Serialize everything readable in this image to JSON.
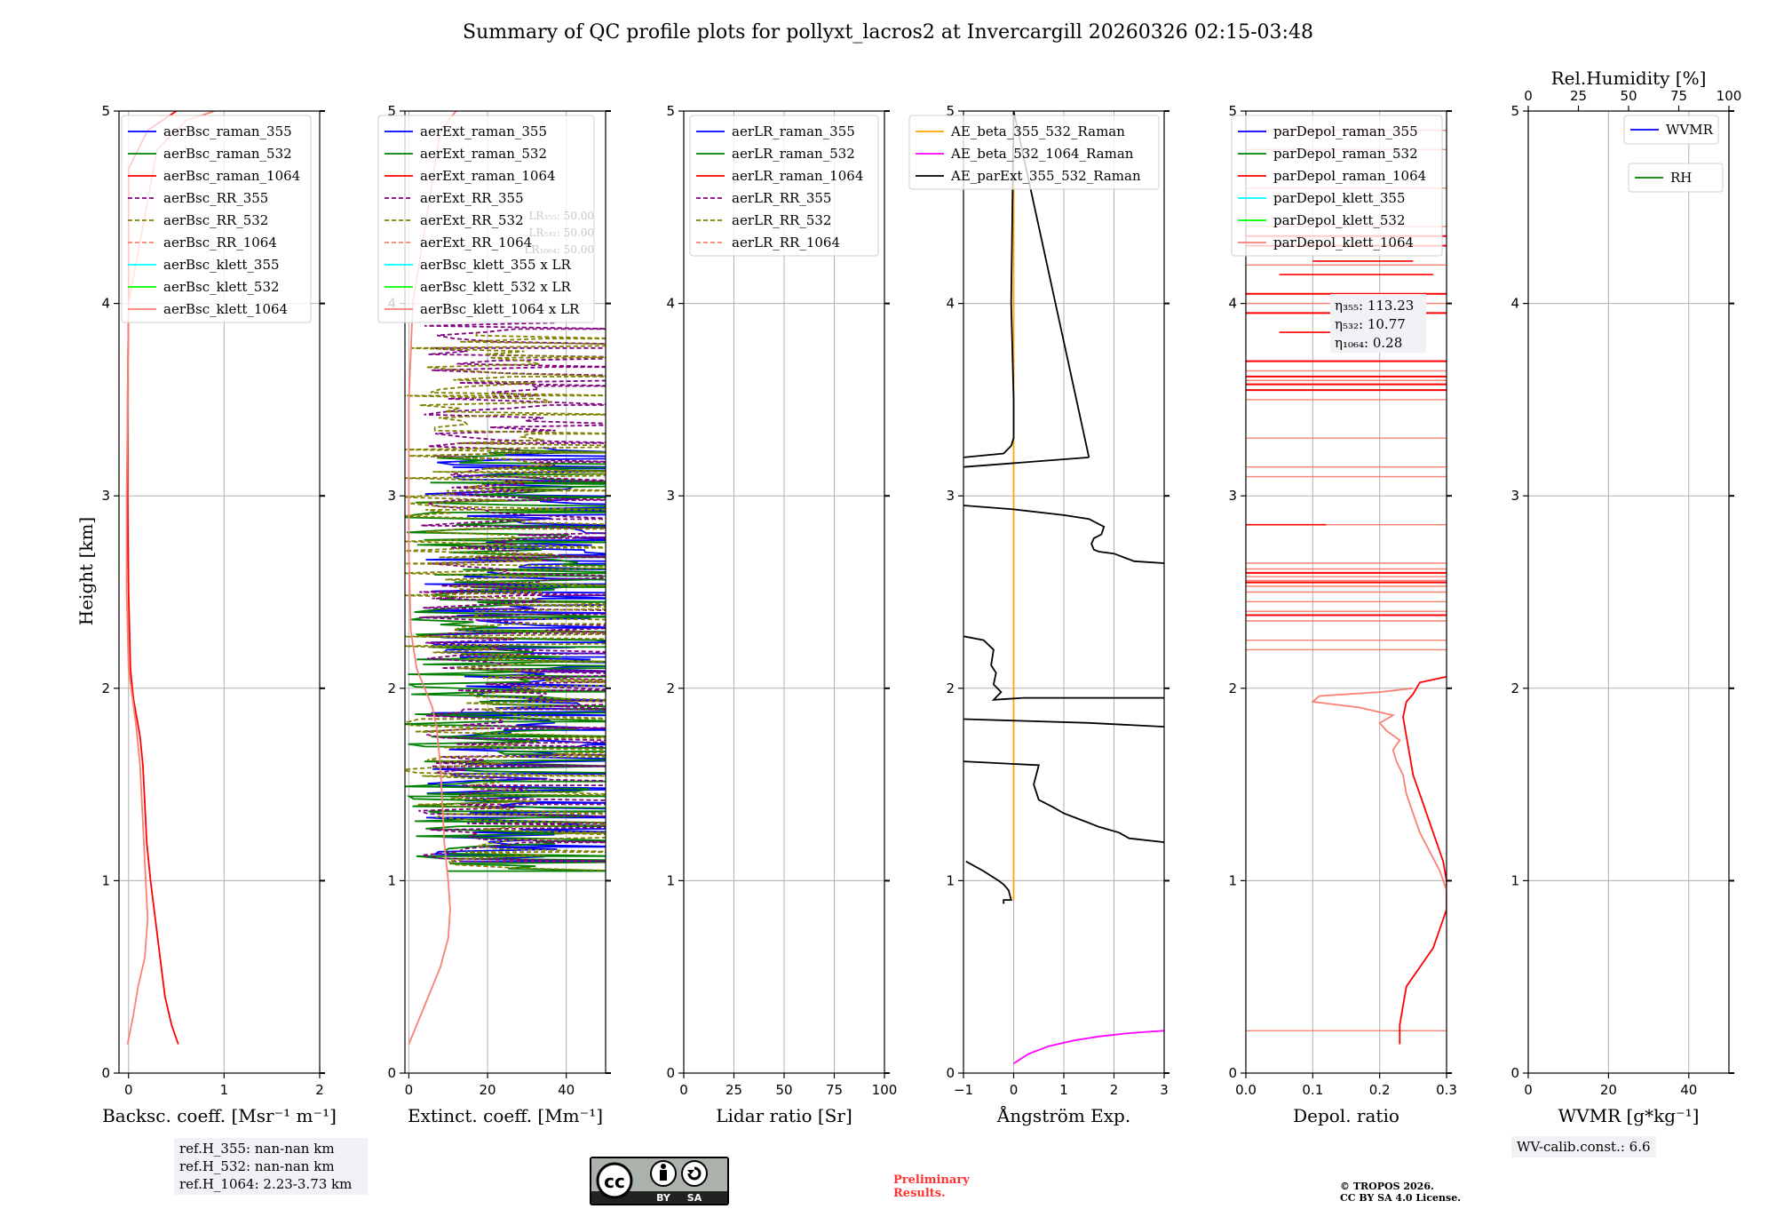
{
  "title": "Summary of QC profile plots for pollyxt_lacros2 at Invercargill 20260326 02:15-03:48",
  "ylabel": "Height [km]",
  "colors": {
    "blue": "#0000ff",
    "green": "#008000",
    "red": "#ff0000",
    "purple": "#800080",
    "olive": "#808000",
    "salmon": "#fa8072",
    "cyan": "#00ffff",
    "lime": "#00ff00",
    "orange": "#ffa500",
    "magenta": "#ff00ff",
    "black": "#000000",
    "darkgreen": "#008000"
  },
  "chart_data": [
    {
      "type": "line",
      "id": "bsc",
      "xlabel": "Backsc. coeff. [Msr⁻¹ m⁻¹]",
      "xlim": [
        -0.1,
        2
      ],
      "ylim": [
        0,
        5
      ],
      "xticks": [
        0,
        1,
        2
      ],
      "xticklabels": [
        "0",
        "1",
        "2"
      ],
      "yticks": [
        0,
        1,
        2,
        3,
        4,
        5
      ],
      "yticklabels": [
        "0",
        "1",
        "2",
        "3",
        "4",
        "5"
      ],
      "legend": [
        "aerBsc_raman_355",
        "aerBsc_raman_532",
        "aerBsc_raman_1064",
        "aerBsc_RR_355",
        "aerBsc_RR_532",
        "aerBsc_RR_1064",
        "aerBsc_klett_355",
        "aerBsc_klett_532",
        "aerBsc_klett_1064"
      ],
      "legend_colors": [
        "blue",
        "green",
        "red",
        "purple",
        "olive",
        "salmon",
        "cyan",
        "lime",
        "salmon"
      ],
      "legend_dashed": [
        false,
        false,
        false,
        true,
        true,
        true,
        false,
        false,
        false
      ],
      "series": [
        {
          "name": "aerBsc_raman_1064",
          "color": "red",
          "x": [
            0.52,
            0.45,
            0.38,
            0.33,
            0.28,
            0.23,
            0.19,
            0.17,
            0.16,
            0.15,
            0.12,
            0.05,
            0.02,
            0.0,
            -0.01,
            -0.01,
            0.0,
            0.0,
            0.2,
            0.5
          ],
          "y": [
            0.15,
            0.25,
            0.4,
            0.6,
            0.8,
            1.0,
            1.2,
            1.4,
            1.5,
            1.6,
            1.75,
            1.95,
            2.1,
            2.5,
            3.0,
            3.5,
            4.0,
            4.7,
            4.9,
            5.0
          ]
        },
        {
          "name": "aerBsc_klett_1064",
          "color": "salmon",
          "x": [
            -0.01,
            0.05,
            0.1,
            0.17,
            0.2,
            0.18,
            0.15,
            0.12,
            0.08,
            0.04,
            0.0,
            -0.02,
            -0.02,
            -0.01,
            0.0,
            0.3,
            0.6,
            0.9
          ],
          "y": [
            0.15,
            0.3,
            0.45,
            0.6,
            0.8,
            1.0,
            1.3,
            1.6,
            1.8,
            1.95,
            2.1,
            2.5,
            3.0,
            3.5,
            4.0,
            4.8,
            4.95,
            5.0
          ]
        }
      ],
      "annotations": [],
      "ref_notes": [
        "ref.H_355: nan-nan km",
        "ref.H_532: nan-nan km",
        "ref.H_1064: 2.23-3.73 km"
      ]
    },
    {
      "type": "line",
      "id": "ext",
      "xlabel": "Extinct. coeff. [Mm⁻¹]",
      "xlim": [
        -1,
        50
      ],
      "ylim": [
        0,
        5
      ],
      "xticks": [
        0,
        20,
        40
      ],
      "xticklabels": [
        "0",
        "20",
        "40"
      ],
      "yticks": [
        0,
        1,
        2,
        3,
        4,
        5
      ],
      "yticklabels": [
        "0",
        "1",
        "2",
        "3",
        "4",
        "5"
      ],
      "legend": [
        "aerExt_raman_355",
        "aerExt_raman_532",
        "aerExt_raman_1064",
        "aerExt_RR_355",
        "aerExt_RR_532",
        "aerExt_RR_1064",
        "aerBsc_klett_355 x LR",
        "aerBsc_klett_532 x LR",
        "aerBsc_klett_1064 x LR"
      ],
      "legend_colors": [
        "blue",
        "green",
        "red",
        "purple",
        "olive",
        "salmon",
        "cyan",
        "lime",
        "salmon"
      ],
      "legend_dashed": [
        false,
        false,
        false,
        true,
        true,
        true,
        false,
        false,
        false
      ],
      "lr_notes": [
        "LR₃₅₅: 50.00",
        "LR₅₃₂: 50.00",
        "LR₁₀₆₄: 50.00"
      ],
      "series": [
        {
          "name": "aerBsc_klett_1064 x LR",
          "color": "salmon",
          "x": [
            0,
            3,
            6,
            8,
            10,
            10.5,
            10,
            9,
            8.5,
            8,
            7.5,
            7,
            6,
            4,
            2,
            0.5,
            0,
            0,
            1,
            8,
            12
          ],
          "y": [
            0.15,
            0.3,
            0.45,
            0.55,
            0.7,
            0.85,
            1.0,
            1.2,
            1.4,
            1.6,
            1.7,
            1.8,
            1.9,
            2.0,
            2.1,
            2.3,
            2.7,
            3.5,
            4.0,
            4.9,
            5.0
          ]
        }
      ],
      "noise_series": [
        {
          "name": "aerExt_raman_355",
          "color": "blue",
          "ymin": 1.1,
          "ymax": 3.25,
          "seed": 11,
          "center": 25,
          "spread": 22,
          "dashed": false
        },
        {
          "name": "aerExt_raman_532",
          "color": "green",
          "ymin": 1.05,
          "ymax": 3.25,
          "seed": 23,
          "center": 22,
          "spread": 24,
          "dashed": false
        },
        {
          "name": "aerExt_RR_355",
          "color": "purple",
          "ymin": 1.1,
          "ymax": 3.9,
          "seed": 37,
          "center": 20,
          "spread": 18,
          "dashed": true
        },
        {
          "name": "aerExt_RR_532",
          "color": "olive",
          "ymin": 1.05,
          "ymax": 3.85,
          "seed": 51,
          "center": 17,
          "spread": 20,
          "dashed": true
        }
      ]
    },
    {
      "type": "line",
      "id": "lr",
      "xlabel": "Lidar ratio [Sr]",
      "xlim": [
        0,
        100
      ],
      "ylim": [
        0,
        5
      ],
      "xticks": [
        0,
        25,
        50,
        75,
        100
      ],
      "xticklabels": [
        "0",
        "25",
        "50",
        "75",
        "100"
      ],
      "yticks": [
        0,
        1,
        2,
        3,
        4,
        5
      ],
      "yticklabels": [
        "0",
        "1",
        "2",
        "3",
        "4",
        "5"
      ],
      "legend": [
        "aerLR_raman_355",
        "aerLR_raman_532",
        "aerLR_raman_1064",
        "aerLR_RR_355",
        "aerLR_RR_532",
        "aerLR_RR_1064"
      ],
      "legend_colors": [
        "blue",
        "green",
        "red",
        "purple",
        "olive",
        "salmon"
      ],
      "legend_dashed": [
        false,
        false,
        false,
        true,
        true,
        true
      ],
      "series": []
    },
    {
      "type": "line",
      "id": "ae",
      "xlabel": "Ångström Exp.",
      "xlim": [
        -1,
        3
      ],
      "ylim": [
        0,
        5
      ],
      "xticks": [
        -1,
        0,
        1,
        2,
        3
      ],
      "xticklabels": [
        "−1",
        "0",
        "1",
        "2",
        "3"
      ],
      "yticks": [
        0,
        1,
        2,
        3,
        4,
        5
      ],
      "yticklabels": [
        "0",
        "1",
        "2",
        "3",
        "4",
        "5"
      ],
      "legend": [
        "AE_beta_355_532_Raman",
        "AE_beta_532_1064_Raman",
        "AE_parExt_355_532_Raman"
      ],
      "legend_colors": [
        "orange",
        "magenta",
        "black"
      ],
      "legend_dashed": [
        false,
        false,
        false
      ],
      "series": [
        {
          "name": "AE_beta_355_532_Raman",
          "color": "orange",
          "x": [
            0,
            0
          ],
          "y": [
            0.9,
            5.0
          ]
        },
        {
          "name": "AE_beta_532_1064_Raman",
          "color": "magenta",
          "x": [
            0.0,
            0.3,
            0.7,
            1.2,
            1.7,
            2.2,
            2.7,
            3.0
          ],
          "y": [
            0.05,
            0.1,
            0.14,
            0.17,
            0.19,
            0.205,
            0.215,
            0.22
          ]
        },
        {
          "name": "AE_parExt_355_532_Raman",
          "color": "black",
          "x": [
            -0.95,
            -0.6,
            -0.3,
            -0.2,
            -0.1,
            -0.05,
            -0.2,
            -0.2
          ],
          "y": [
            1.1,
            1.05,
            1.0,
            0.98,
            0.95,
            0.9,
            0.9,
            0.88
          ]
        },
        {
          "name": "AE_parExt_355_532_Raman",
          "color": "black",
          "x": [
            -1.0,
            0.5,
            0.4,
            0.5,
            0.8,
            1.0,
            1.2,
            1.5,
            1.7,
            2.1,
            2.3,
            3.0
          ],
          "y": [
            1.62,
            1.6,
            1.5,
            1.42,
            1.38,
            1.35,
            1.33,
            1.3,
            1.28,
            1.25,
            1.22,
            1.2
          ]
        },
        {
          "name": "AE_parExt_355_532_Raman",
          "color": "black",
          "x": [
            -1.0,
            1.5,
            3.0
          ],
          "y": [
            1.84,
            1.82,
            1.8
          ]
        },
        {
          "name": "AE_parExt_355_532_Raman",
          "color": "black",
          "x": [
            -1.0,
            -0.6,
            -0.4,
            -0.45,
            -0.35,
            -0.4,
            -0.25,
            -0.4,
            0.2,
            1.0,
            3.0
          ],
          "y": [
            2.27,
            2.25,
            2.2,
            2.12,
            2.08,
            2.02,
            1.98,
            1.94,
            1.95,
            1.95,
            1.95
          ]
        },
        {
          "name": "AE_parExt_355_532_Raman",
          "color": "black",
          "x": [
            -1.0,
            0.0,
            1.0,
            1.5,
            1.8,
            1.75,
            1.6,
            1.55,
            1.6,
            1.7,
            2.0,
            2.4,
            3.0
          ],
          "y": [
            2.95,
            2.93,
            2.9,
            2.88,
            2.84,
            2.8,
            2.78,
            2.75,
            2.72,
            2.71,
            2.7,
            2.66,
            2.65
          ]
        },
        {
          "name": "AE_parExt_355_532_Raman",
          "color": "black",
          "x": [
            -1.0,
            -0.2,
            -0.05,
            0.0,
            0.0,
            0.0,
            -0.05,
            0.0,
            1.5
          ],
          "y": [
            3.2,
            3.22,
            3.26,
            3.3,
            3.38,
            3.5,
            4.0,
            5.0,
            3.2
          ]
        },
        {
          "name": "AE_parExt_355_532_Raman",
          "color": "black",
          "x": [
            -1.0,
            1.5
          ],
          "y": [
            3.15,
            3.2
          ]
        }
      ]
    },
    {
      "type": "line",
      "id": "depol",
      "xlabel": "Depol. ratio",
      "xlim": [
        0,
        0.3
      ],
      "ylim": [
        0,
        5
      ],
      "xticks": [
        0,
        0.1,
        0.2,
        0.3
      ],
      "xticklabels": [
        "0.0",
        "0.1",
        "0.2",
        "0.3"
      ],
      "yticks": [
        0,
        1,
        2,
        3,
        4,
        5
      ],
      "yticklabels": [
        "0",
        "1",
        "2",
        "3",
        "4",
        "5"
      ],
      "legend": [
        "parDepol_raman_355",
        "parDepol_raman_532",
        "parDepol_raman_1064",
        "parDepol_klett_355",
        "parDepol_klett_532",
        "parDepol_klett_1064"
      ],
      "legend_colors": [
        "blue",
        "green",
        "red",
        "cyan",
        "lime",
        "salmon"
      ],
      "legend_dashed": [
        false,
        false,
        false,
        false,
        false,
        false
      ],
      "eta_notes": [
        "η₃₅₅: 113.23",
        "η₅₃₂: 10.77",
        "η₁₀₆₄: 0.28"
      ],
      "series": [
        {
          "name": "parDepol_raman_1064",
          "color": "red",
          "x": [
            0.23,
            0.23,
            0.235,
            0.24,
            0.25,
            0.26,
            0.27,
            0.28,
            0.29,
            0.3,
            0.3,
            0.295,
            0.285,
            0.27,
            0.26,
            0.25,
            0.245,
            0.24,
            0.235,
            0.24,
            0.25,
            0.255,
            0.26,
            0.3
          ],
          "y": [
            0.15,
            0.25,
            0.35,
            0.45,
            0.5,
            0.55,
            0.6,
            0.65,
            0.75,
            0.85,
            1.0,
            1.1,
            1.2,
            1.35,
            1.45,
            1.55,
            1.65,
            1.75,
            1.85,
            1.93,
            1.97,
            2.0,
            2.03,
            2.06
          ]
        },
        {
          "name": "parDepol_klett_1064",
          "color": "salmon",
          "x": [
            0.3,
            0.29,
            0.275,
            0.26,
            0.25,
            0.24,
            0.235,
            0.225,
            0.22,
            0.23,
            0.21,
            0.2,
            0.22,
            0.17,
            0.1,
            0.11,
            0.2,
            0.25
          ],
          "y": [
            0.95,
            1.05,
            1.15,
            1.25,
            1.35,
            1.45,
            1.55,
            1.62,
            1.68,
            1.73,
            1.78,
            1.82,
            1.86,
            1.9,
            1.93,
            1.96,
            1.98,
            2.0
          ]
        }
      ],
      "hlines_salmon": [
        0.22,
        2.2,
        2.25,
        2.35,
        2.4,
        2.45,
        2.5,
        2.53,
        2.56,
        2.58,
        2.6,
        2.62,
        2.65,
        2.85,
        3.1,
        3.15,
        3.3,
        3.5,
        3.55,
        3.6,
        3.65,
        3.7,
        4.0,
        4.2,
        4.4,
        4.6,
        4.8,
        4.9
      ],
      "hlines_red": [
        2.38,
        2.55,
        2.6,
        3.55,
        3.58,
        3.62,
        3.7,
        3.95,
        4.05,
        4.3,
        4.35
      ],
      "hlines_short": [
        [
          0.05,
          0.28,
          4.15
        ],
        [
          0.1,
          0.25,
          4.22
        ],
        [
          0.05,
          0.18,
          3.85
        ],
        [
          0.0,
          0.12,
          2.85
        ]
      ]
    },
    {
      "type": "line",
      "id": "wv",
      "xlabel": "WVMR [g*kg⁻¹]",
      "xlim": [
        0,
        50
      ],
      "ylim": [
        0,
        5
      ],
      "xticks": [
        0,
        20,
        40
      ],
      "xticklabels": [
        "0",
        "20",
        "40"
      ],
      "yticks": [
        0,
        1,
        2,
        3,
        4,
        5
      ],
      "yticklabels": [
        "0",
        "1",
        "2",
        "3",
        "4",
        "5"
      ],
      "top_axis": {
        "label": "Rel.Humidity [%]",
        "ticks": [
          0,
          25,
          50,
          75,
          100
        ],
        "ticklabels": [
          "0",
          "25",
          "50",
          "75",
          "100"
        ],
        "lim": [
          0,
          100
        ]
      },
      "legend": [
        "WVMR",
        "RH"
      ],
      "legend_colors": [
        "blue",
        "darkgreen"
      ],
      "legend_dashed": [
        false,
        false
      ],
      "series": [],
      "calib_note": "WV-calib.const.: 6.6"
    }
  ],
  "footer": {
    "cc_by": "BY",
    "cc_sa": "SA",
    "cc_mark": "cc",
    "preliminary_line1": "Preliminary",
    "preliminary_line2": "Results.",
    "copyright_line1": "© TROPOS 2026.",
    "copyright_line2": "CC BY SA 4.0 License."
  }
}
